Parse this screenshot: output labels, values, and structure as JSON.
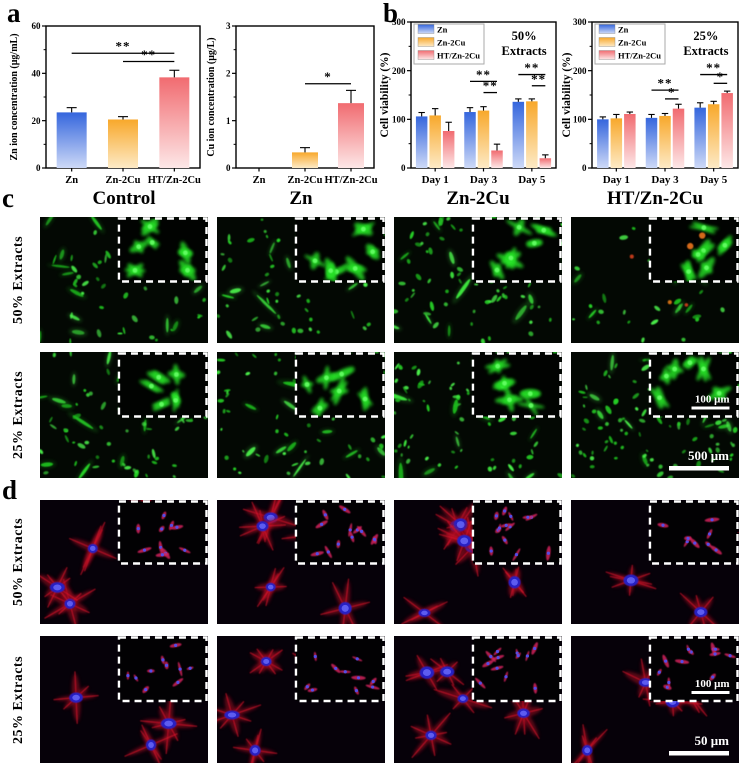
{
  "panels": {
    "a": "a",
    "b": "b",
    "c": "c",
    "d": "d"
  },
  "colors": {
    "zn": {
      "top": "#3566dd",
      "bottom": "#cdd9f7"
    },
    "zn2cu": {
      "top": "#f8a82b",
      "bottom": "#fdeac6"
    },
    "ht": {
      "top": "#f16b70",
      "bottom": "#fde7e7"
    },
    "axis": "#000000",
    "live_bg": "#030803",
    "actin_bg": "#060109"
  },
  "chart_data": [
    {
      "id": "a1",
      "type": "bar",
      "ylabel": "Zn ion concentration (μg/mL)",
      "categories": [
        "Zn",
        "Zn-2Cu",
        "HT/Zn-2Cu"
      ],
      "bar_color_keys": [
        "zn",
        "zn2cu",
        "ht"
      ],
      "values": [
        23.5,
        20.5,
        38.3
      ],
      "errors": [
        2.0,
        1.2,
        3.0
      ],
      "ylim": [
        0,
        60
      ],
      "yticks": [
        0,
        20,
        40,
        60
      ],
      "yminor": 10,
      "significance": [
        {
          "from": 0,
          "to": 2,
          "y": 48.5,
          "label": "**"
        },
        {
          "from": 1,
          "to": 2,
          "y": 45.0,
          "label": "**"
        }
      ]
    },
    {
      "id": "a2",
      "type": "bar",
      "ylabel": "Cu ion concentration (μg/L)",
      "categories": [
        "Zn",
        "Zn-2Cu",
        "HT/Zn-2Cu"
      ],
      "bar_color_keys": [
        "zn",
        "zn2cu",
        "ht"
      ],
      "values": [
        0,
        0.33,
        1.37
      ],
      "errors": [
        0,
        0.1,
        0.27
      ],
      "ylim": [
        0,
        3
      ],
      "yticks": [
        0,
        1,
        2,
        3
      ],
      "yminor": 0.5,
      "significance": [
        {
          "from": 1,
          "to": 2,
          "y": 1.78,
          "label": "*"
        }
      ]
    },
    {
      "id": "b1",
      "type": "grouped_bar",
      "ylabel": "Cell viability (%)",
      "categories": [
        "Day 1",
        "Day 3",
        "Day 5"
      ],
      "series": [
        {
          "name": "Zn",
          "color_key": "zn",
          "values": [
            106,
            115,
            136
          ],
          "errors": [
            8,
            9,
            6
          ]
        },
        {
          "name": "Zn-2Cu",
          "color_key": "zn2cu",
          "values": [
            108,
            118,
            137
          ],
          "errors": [
            14,
            8,
            5
          ]
        },
        {
          "name": "HT/Zn-2Cu",
          "color_key": "ht",
          "values": [
            76,
            36,
            20
          ],
          "errors": [
            18,
            13,
            7
          ]
        }
      ],
      "ylim": [
        0,
        300
      ],
      "yticks": [
        0,
        100,
        200,
        300
      ],
      "yminor": 50,
      "legend_position": "top-left",
      "note": [
        "50%",
        "Extracts"
      ],
      "significance": [
        {
          "group": 1,
          "from": 0,
          "to": 2,
          "y": 178,
          "label": "**"
        },
        {
          "group": 1,
          "from": 1,
          "to": 2,
          "y": 155,
          "label": "**"
        },
        {
          "group": 2,
          "from": 0,
          "to": 2,
          "y": 192,
          "label": "**"
        },
        {
          "group": 2,
          "from": 1,
          "to": 2,
          "y": 169,
          "label": "**"
        }
      ]
    },
    {
      "id": "b2",
      "type": "grouped_bar",
      "ylabel": "Cell viability (%)",
      "categories": [
        "Day 1",
        "Day 3",
        "Day 5"
      ],
      "series": [
        {
          "name": "Zn",
          "color_key": "zn",
          "values": [
            100,
            103,
            124
          ],
          "errors": [
            5,
            7,
            10
          ]
        },
        {
          "name": "Zn-2Cu",
          "color_key": "zn2cu",
          "values": [
            102,
            107,
            131
          ],
          "errors": [
            8,
            5,
            6
          ]
        },
        {
          "name": "HT/Zn-2Cu",
          "color_key": "ht",
          "values": [
            111,
            122,
            154
          ],
          "errors": [
            4,
            9,
            4
          ]
        }
      ],
      "ylim": [
        0,
        300
      ],
      "yticks": [
        0,
        100,
        200,
        300
      ],
      "yminor": 50,
      "legend_position": "top-left",
      "note": [
        "25%",
        "Extracts"
      ],
      "significance": [
        {
          "group": 1,
          "from": 0,
          "to": 2,
          "y": 160,
          "label": "**"
        },
        {
          "group": 1,
          "from": 1,
          "to": 2,
          "y": 142,
          "label": "*"
        },
        {
          "group": 2,
          "from": 0,
          "to": 2,
          "y": 192,
          "label": "**"
        },
        {
          "group": 2,
          "from": 1,
          "to": 2,
          "y": 174,
          "label": "*"
        }
      ]
    }
  ],
  "panel_c": {
    "column_headers": [
      "Control",
      "Zn",
      "Zn-2Cu",
      "HT/Zn-2Cu"
    ],
    "rows": [
      {
        "label": "50% Extracts",
        "panels": [
          {
            "density": 62
          },
          {
            "density": 55
          },
          {
            "density": 78
          },
          {
            "density": 42,
            "red_dots": 6,
            "inset_red": 2
          }
        ]
      },
      {
        "label": "25% Extracts",
        "panels": [
          {
            "density": 88
          },
          {
            "density": 72
          },
          {
            "density": 82
          },
          {
            "density": 96,
            "scalebar_inset": "100 μm",
            "scalebar_main": "500 μm"
          }
        ]
      }
    ]
  },
  "panel_d": {
    "rows": [
      {
        "label": "50% Extracts",
        "panels": [
          {
            "cells": 4,
            "inset_cells": 10
          },
          {
            "cells": 5,
            "inset_cells": 12
          },
          {
            "cells": 6,
            "inset_cells": 13
          },
          {
            "cells": 3,
            "inset_cells": 8
          }
        ]
      },
      {
        "label": "25% Extracts",
        "panels": [
          {
            "cells": 4,
            "inset_cells": 10
          },
          {
            "cells": 4,
            "inset_cells": 10
          },
          {
            "cells": 5,
            "inset_cells": 12
          },
          {
            "cells": 5,
            "inset_cells": 12,
            "scalebar_inset": "100 μm",
            "scalebar_main": "50 μm"
          }
        ]
      }
    ]
  }
}
